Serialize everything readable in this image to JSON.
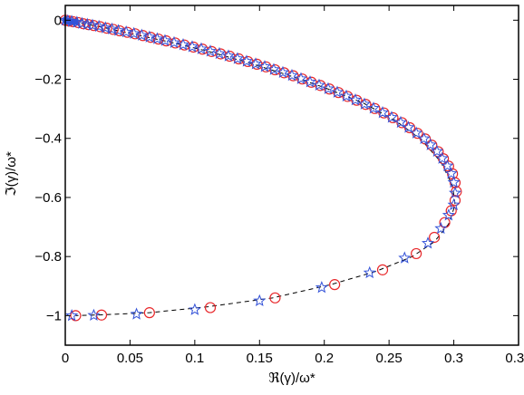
{
  "chart_data": {
    "type": "scatter",
    "xlabel": "ℜ(γ)/ω*",
    "ylabel": "ℑ(γ)/ω*",
    "xlim": [
      0,
      0.35
    ],
    "ylim": [
      -1.1,
      0.05
    ],
    "x_ticks": [
      0,
      0.05,
      0.1,
      0.15,
      0.2,
      0.25,
      0.3,
      0.35
    ],
    "x_tick_labels": [
      "0",
      "0.05",
      "0.1",
      "0.15",
      "0.2",
      "0.25",
      "0.3",
      "0.35"
    ],
    "y_ticks": [
      0,
      -0.2,
      -0.4,
      -0.6,
      -0.8,
      -1
    ],
    "y_tick_labels": [
      "0",
      "−0.2",
      "−0.4",
      "−0.6",
      "−0.8",
      "−1"
    ],
    "grid": false,
    "legend": "none",
    "colors": {
      "circles": "#e8272a",
      "stars": "#3352d8",
      "dashed_line": "#000000"
    },
    "series": [
      {
        "marker": "dashed-line",
        "points": [
          [
            0.0,
            0.0
          ],
          [
            0.012,
            -0.01
          ],
          [
            0.03,
            -0.025
          ],
          [
            0.05,
            -0.045
          ],
          [
            0.08,
            -0.073
          ],
          [
            0.11,
            -0.105
          ],
          [
            0.14,
            -0.142
          ],
          [
            0.17,
            -0.183
          ],
          [
            0.2,
            -0.228
          ],
          [
            0.23,
            -0.28
          ],
          [
            0.255,
            -0.34
          ],
          [
            0.275,
            -0.405
          ],
          [
            0.29,
            -0.48
          ],
          [
            0.299,
            -0.56
          ],
          [
            0.301,
            -0.625
          ],
          [
            0.296,
            -0.69
          ],
          [
            0.285,
            -0.75
          ],
          [
            0.268,
            -0.8
          ],
          [
            0.24,
            -0.85
          ],
          [
            0.205,
            -0.895
          ],
          [
            0.16,
            -0.94
          ],
          [
            0.11,
            -0.97
          ],
          [
            0.065,
            -0.99
          ],
          [
            0.03,
            -0.997
          ],
          [
            0.008,
            -1.0
          ]
        ]
      },
      {
        "marker": "open-circle",
        "points": [
          [
            0.0,
            0.0
          ],
          [
            0.003,
            -0.003
          ],
          [
            0.006,
            -0.005
          ],
          [
            0.01,
            -0.008
          ],
          [
            0.014,
            -0.012
          ],
          [
            0.018,
            -0.015
          ],
          [
            0.022,
            -0.018
          ],
          [
            0.027,
            -0.022
          ],
          [
            0.032,
            -0.027
          ],
          [
            0.037,
            -0.031
          ],
          [
            0.042,
            -0.036
          ],
          [
            0.048,
            -0.041
          ],
          [
            0.054,
            -0.046
          ],
          [
            0.06,
            -0.052
          ],
          [
            0.066,
            -0.058
          ],
          [
            0.072,
            -0.064
          ],
          [
            0.078,
            -0.07
          ],
          [
            0.085,
            -0.077
          ],
          [
            0.092,
            -0.084
          ],
          [
            0.099,
            -0.091
          ],
          [
            0.106,
            -0.098
          ],
          [
            0.113,
            -0.106
          ],
          [
            0.12,
            -0.114
          ],
          [
            0.127,
            -0.122
          ],
          [
            0.134,
            -0.131
          ],
          [
            0.141,
            -0.14
          ],
          [
            0.148,
            -0.149
          ],
          [
            0.155,
            -0.158
          ],
          [
            0.162,
            -0.168
          ],
          [
            0.169,
            -0.178
          ],
          [
            0.176,
            -0.188
          ],
          [
            0.183,
            -0.199
          ],
          [
            0.19,
            -0.21
          ],
          [
            0.197,
            -0.221
          ],
          [
            0.204,
            -0.233
          ],
          [
            0.211,
            -0.245
          ],
          [
            0.218,
            -0.258
          ],
          [
            0.225,
            -0.271
          ],
          [
            0.232,
            -0.285
          ],
          [
            0.239,
            -0.299
          ],
          [
            0.246,
            -0.314
          ],
          [
            0.253,
            -0.33
          ],
          [
            0.26,
            -0.347
          ],
          [
            0.266,
            -0.364
          ],
          [
            0.272,
            -0.383
          ],
          [
            0.278,
            -0.402
          ],
          [
            0.283,
            -0.423
          ],
          [
            0.288,
            -0.445
          ],
          [
            0.292,
            -0.469
          ],
          [
            0.296,
            -0.494
          ],
          [
            0.299,
            -0.52
          ],
          [
            0.301,
            -0.55
          ],
          [
            0.302,
            -0.58
          ],
          [
            0.301,
            -0.61
          ],
          [
            0.298,
            -0.645
          ],
          [
            0.293,
            -0.685
          ],
          [
            0.285,
            -0.735
          ],
          [
            0.271,
            -0.79
          ],
          [
            0.245,
            -0.845
          ],
          [
            0.208,
            -0.895
          ],
          [
            0.162,
            -0.94
          ],
          [
            0.112,
            -0.973
          ],
          [
            0.065,
            -0.99
          ],
          [
            0.028,
            -0.998
          ],
          [
            0.008,
            -1.0
          ]
        ]
      },
      {
        "marker": "star",
        "points": [
          [
            0.0,
            0.0
          ],
          [
            0.002,
            -0.002
          ],
          [
            0.005,
            -0.004
          ],
          [
            0.009,
            -0.007
          ],
          [
            0.013,
            -0.011
          ],
          [
            0.017,
            -0.014
          ],
          [
            0.021,
            -0.017
          ],
          [
            0.026,
            -0.021
          ],
          [
            0.031,
            -0.026
          ],
          [
            0.036,
            -0.03
          ],
          [
            0.041,
            -0.035
          ],
          [
            0.047,
            -0.04
          ],
          [
            0.053,
            -0.045
          ],
          [
            0.059,
            -0.051
          ],
          [
            0.065,
            -0.057
          ],
          [
            0.071,
            -0.063
          ],
          [
            0.077,
            -0.069
          ],
          [
            0.084,
            -0.076
          ],
          [
            0.091,
            -0.083
          ],
          [
            0.098,
            -0.09
          ],
          [
            0.105,
            -0.097
          ],
          [
            0.112,
            -0.105
          ],
          [
            0.119,
            -0.113
          ],
          [
            0.126,
            -0.121
          ],
          [
            0.133,
            -0.13
          ],
          [
            0.14,
            -0.139
          ],
          [
            0.147,
            -0.148
          ],
          [
            0.154,
            -0.157
          ],
          [
            0.161,
            -0.167
          ],
          [
            0.168,
            -0.177
          ],
          [
            0.175,
            -0.187
          ],
          [
            0.182,
            -0.198
          ],
          [
            0.189,
            -0.209
          ],
          [
            0.196,
            -0.22
          ],
          [
            0.203,
            -0.232
          ],
          [
            0.21,
            -0.244
          ],
          [
            0.217,
            -0.257
          ],
          [
            0.224,
            -0.27
          ],
          [
            0.231,
            -0.284
          ],
          [
            0.238,
            -0.298
          ],
          [
            0.245,
            -0.313
          ],
          [
            0.252,
            -0.329
          ],
          [
            0.259,
            -0.346
          ],
          [
            0.265,
            -0.363
          ],
          [
            0.271,
            -0.382
          ],
          [
            0.277,
            -0.401
          ],
          [
            0.282,
            -0.422
          ],
          [
            0.287,
            -0.444
          ],
          [
            0.291,
            -0.468
          ],
          [
            0.295,
            -0.493
          ],
          [
            0.298,
            -0.519
          ],
          [
            0.3,
            -0.549
          ],
          [
            0.301,
            -0.585
          ],
          [
            0.3,
            -0.625
          ],
          [
            0.296,
            -0.66
          ],
          [
            0.29,
            -0.705
          ],
          [
            0.28,
            -0.755
          ],
          [
            0.262,
            -0.805
          ],
          [
            0.235,
            -0.855
          ],
          [
            0.198,
            -0.905
          ],
          [
            0.15,
            -0.95
          ],
          [
            0.1,
            -0.98
          ],
          [
            0.055,
            -0.995
          ],
          [
            0.022,
            -0.999
          ],
          [
            0.005,
            -1.0
          ]
        ]
      },
      {
        "marker": "filled-square",
        "points": [
          [
            0.0,
            0.0
          ],
          [
            0.002,
            -0.002
          ],
          [
            0.004,
            -0.004
          ],
          [
            0.006,
            -0.005
          ],
          [
            0.008,
            -0.006
          ]
        ]
      }
    ]
  }
}
